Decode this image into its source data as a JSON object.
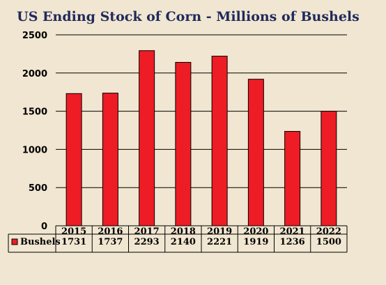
{
  "chart_data": {
    "type": "bar",
    "title": "US Ending Stock of Corn - Millions of Bushels",
    "categories": [
      "2015",
      "2016",
      "2017",
      "2018",
      "2019",
      "2020",
      "2021",
      "2022"
    ],
    "series": [
      {
        "name": "Bushels",
        "values": [
          1731,
          1737,
          2293,
          2140,
          2221,
          1919,
          1236,
          1500
        ]
      }
    ],
    "data_table_values": [
      "1731",
      "1737",
      "2293",
      "2140",
      "2221",
      "1919",
      "1236",
      "1500"
    ],
    "ylim": [
      0,
      2500
    ],
    "yticks": [
      "0",
      "500",
      "1000",
      "1500",
      "2000",
      "2500"
    ],
    "ytick_values": [
      0,
      500,
      1000,
      1500,
      2000,
      2500
    ],
    "grid": true,
    "legend": "data-table-left",
    "colors": {
      "bar": "#ee1c25",
      "title": "#1f2a5c",
      "background": "#f1e6d1"
    }
  }
}
